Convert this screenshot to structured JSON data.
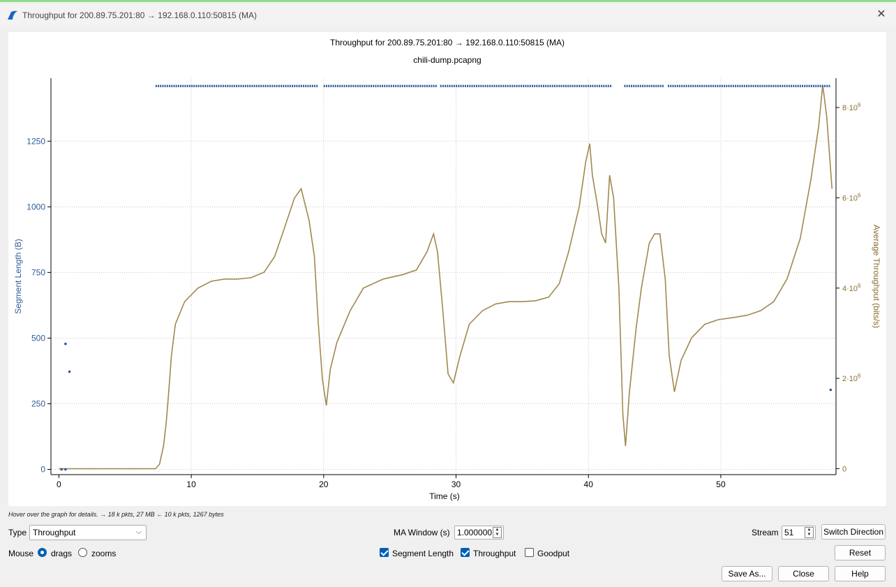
{
  "window": {
    "title": "Throughput for 200.89.75.201:80 → 192.168.0.110:50815 (MA)",
    "icon": "wireshark-fin-icon"
  },
  "plot": {
    "title": "Throughput for 200.89.75.201:80 → 192.168.0.110:50815 (MA)",
    "subtitle": "chili-dump.pcapng"
  },
  "chart_data": {
    "type": "line",
    "title": "Throughput for 200.89.75.201:80 → 192.168.0.110:50815 (MA)",
    "subtitle": "chili-dump.pcapng",
    "xlabel": "Time (s)",
    "ylabel_left": "Segment Length (B)",
    "ylabel_right": "Average Throughput (bits/s)",
    "xlim": [
      -0.6,
      58.7
    ],
    "ylim_left": [
      -20,
      1490
    ],
    "ylim_right": [
      -132000,
      8650000
    ],
    "x_ticks": [
      "0",
      "10",
      "20",
      "30",
      "40",
      "50"
    ],
    "x_tick_values": [
      0,
      10,
      20,
      30,
      40,
      50
    ],
    "y_left_ticks": [
      "0",
      "250",
      "500",
      "750",
      "1000",
      "1250"
    ],
    "y_left_tick_values": [
      0,
      250,
      500,
      750,
      1000,
      1250
    ],
    "y_right_ticks": [
      "0",
      "2·10",
      "4·10",
      "6·10",
      "8·10"
    ],
    "y_right_tick_exponent": "6",
    "y_right_tick_values": [
      0,
      2000000,
      4000000,
      6000000,
      8000000
    ],
    "grid": true,
    "series": [
      {
        "name": "Segment Length",
        "color": "#2e5b9a",
        "style": "points",
        "points": [
          [
            0.2,
            0
          ],
          [
            0.5,
            0
          ],
          [
            0.5,
            478
          ],
          [
            0.8,
            372
          ],
          [
            58.3,
            303
          ]
        ],
        "segments": [
          [
            7.3,
            19.6,
            1460
          ],
          [
            20.0,
            28.6,
            1460
          ],
          [
            28.8,
            41.8,
            1460
          ],
          [
            42.7,
            45.7,
            1460
          ],
          [
            46.0,
            58.3,
            1460
          ]
        ]
      },
      {
        "name": "Throughput",
        "color": "#a08850",
        "style": "line",
        "points": [
          [
            0,
            0
          ],
          [
            7.3,
            0
          ],
          [
            7.6,
            100000
          ],
          [
            7.9,
            500000
          ],
          [
            8.1,
            1000000
          ],
          [
            8.3,
            1700000
          ],
          [
            8.5,
            2500000
          ],
          [
            8.8,
            3200000
          ],
          [
            9.5,
            3700000
          ],
          [
            10.5,
            4000000
          ],
          [
            11.5,
            4150000
          ],
          [
            12.5,
            4200000
          ],
          [
            13.5,
            4200000
          ],
          [
            14.5,
            4230000
          ],
          [
            15.5,
            4350000
          ],
          [
            16.3,
            4700000
          ],
          [
            17.0,
            5300000
          ],
          [
            17.8,
            6000000
          ],
          [
            18.3,
            6200000
          ],
          [
            18.9,
            5500000
          ],
          [
            19.3,
            4700000
          ],
          [
            19.6,
            3200000
          ],
          [
            19.9,
            2000000
          ],
          [
            20.2,
            1400000
          ],
          [
            20.5,
            2200000
          ],
          [
            21.0,
            2800000
          ],
          [
            22.0,
            3500000
          ],
          [
            23.0,
            4000000
          ],
          [
            24.5,
            4200000
          ],
          [
            26.0,
            4300000
          ],
          [
            27.0,
            4400000
          ],
          [
            27.8,
            4800000
          ],
          [
            28.3,
            5200000
          ],
          [
            28.6,
            4800000
          ],
          [
            29.0,
            3500000
          ],
          [
            29.4,
            2100000
          ],
          [
            29.8,
            1900000
          ],
          [
            30.3,
            2500000
          ],
          [
            31.0,
            3200000
          ],
          [
            32.0,
            3500000
          ],
          [
            33.0,
            3650000
          ],
          [
            34.0,
            3700000
          ],
          [
            35.0,
            3700000
          ],
          [
            36.0,
            3720000
          ],
          [
            37.0,
            3800000
          ],
          [
            37.8,
            4100000
          ],
          [
            38.5,
            4800000
          ],
          [
            39.3,
            5800000
          ],
          [
            39.8,
            6800000
          ],
          [
            40.1,
            7200000
          ],
          [
            40.3,
            6500000
          ],
          [
            40.7,
            5800000
          ],
          [
            41.0,
            5200000
          ],
          [
            41.3,
            5000000
          ],
          [
            41.6,
            6500000
          ],
          [
            41.9,
            6000000
          ],
          [
            42.3,
            4000000
          ],
          [
            42.6,
            1200000
          ],
          [
            42.8,
            500000
          ],
          [
            43.1,
            1700000
          ],
          [
            43.6,
            3100000
          ],
          [
            44.0,
            4000000
          ],
          [
            44.6,
            5000000
          ],
          [
            45.0,
            5200000
          ],
          [
            45.4,
            5200000
          ],
          [
            45.8,
            4200000
          ],
          [
            46.1,
            2500000
          ],
          [
            46.5,
            1700000
          ],
          [
            47.0,
            2400000
          ],
          [
            47.8,
            2900000
          ],
          [
            48.8,
            3200000
          ],
          [
            49.8,
            3300000
          ],
          [
            51.0,
            3350000
          ],
          [
            52.0,
            3400000
          ],
          [
            53.0,
            3500000
          ],
          [
            54.0,
            3700000
          ],
          [
            55.0,
            4200000
          ],
          [
            56.0,
            5100000
          ],
          [
            56.8,
            6400000
          ],
          [
            57.4,
            7600000
          ],
          [
            57.7,
            8500000
          ],
          [
            58.0,
            7800000
          ],
          [
            58.3,
            6600000
          ],
          [
            58.4,
            6200000
          ]
        ]
      }
    ]
  },
  "hint": "Hover over the graph for details. → 18 k pkts, 27 MB ← 10 k pkts, 1267 bytes",
  "controls": {
    "type_label": "Type",
    "type_value": "Throughput",
    "ma_window_label": "MA Window (s)",
    "ma_window_value": "1.000000",
    "stream_label": "Stream",
    "stream_value": "51",
    "switch_direction": "Switch Direction",
    "mouse_label": "Mouse",
    "drags_label": "drags",
    "zooms_label": "zooms",
    "segment_length_label": "Segment Length",
    "throughput_label": "Throughput",
    "goodput_label": "Goodput",
    "reset": "Reset",
    "save_as": "Save As...",
    "close": "Close",
    "help": "Help"
  },
  "colors": {
    "segment_series": "#2e5b9a",
    "throughput_series": "#a08850",
    "accent": "#005fb8",
    "titlebar_strip": "#8fdc8f"
  }
}
